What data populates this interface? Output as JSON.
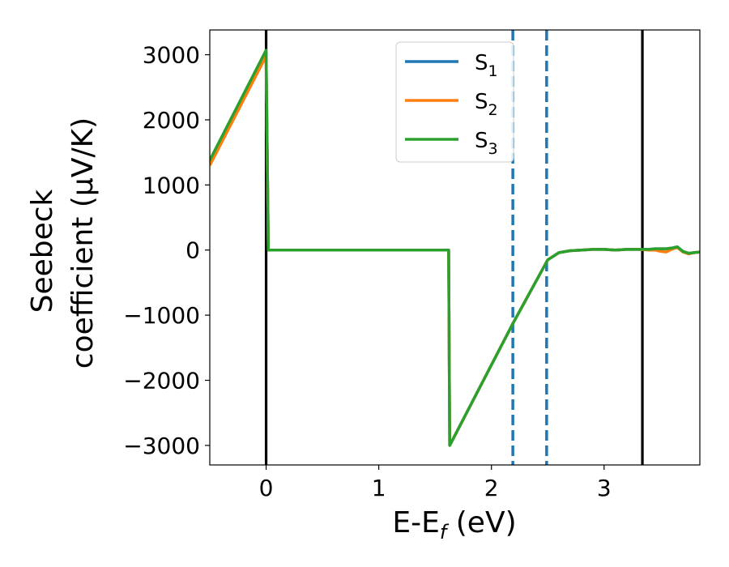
{
  "chart_data": {
    "type": "line",
    "xlabel_main": "E-E",
    "xlabel_sub": "f",
    "xlabel_unit": " (eV)",
    "ylabel_line1": "Seebeck",
    "ylabel_line2": "coefficient  (μV/K)",
    "xlim": [
      -0.5,
      3.85
    ],
    "ylim": [
      -3300,
      3380
    ],
    "xticks": [
      0,
      1,
      2,
      3
    ],
    "xtick_labels": [
      "0",
      "1",
      "2",
      "3"
    ],
    "yticks": [
      3000,
      2000,
      1000,
      0,
      -1000,
      -2000,
      -3000
    ],
    "ytick_labels": [
      "3000",
      "2000",
      "1000",
      "0",
      "−1000",
      "−2000",
      "−3000"
    ],
    "grid": false,
    "legend_position": "upper-center",
    "vertical_lines": [
      {
        "x": 0.0,
        "style": "solid",
        "color": "#000000"
      },
      {
        "x": 2.19,
        "style": "dashed",
        "color": "#1f77b4"
      },
      {
        "x": 2.49,
        "style": "dashed",
        "color": "#1f77b4"
      },
      {
        "x": 3.34,
        "style": "solid",
        "color": "#000000"
      }
    ],
    "series": [
      {
        "name": "S",
        "sub": "1",
        "color": "#1f77b4",
        "x": [
          -0.5,
          0.0,
          0.02,
          1.62,
          1.63,
          2.19,
          2.5,
          2.6,
          2.7,
          2.8,
          2.9,
          3.0,
          3.1,
          3.2,
          3.3,
          3.4,
          3.45,
          3.5,
          3.55,
          3.6,
          3.65,
          3.7,
          3.75,
          3.8,
          3.85
        ],
        "y": [
          1350,
          3040,
          0,
          0,
          -3000,
          -1130,
          -150,
          -40,
          -10,
          0,
          10,
          10,
          0,
          10,
          10,
          10,
          20,
          20,
          20,
          30,
          50,
          -20,
          -50,
          -40,
          -30
        ]
      },
      {
        "name": "S",
        "sub": "2",
        "color": "#ff7f0e",
        "x": [
          -0.5,
          0.0,
          0.02,
          1.62,
          1.63,
          2.19,
          2.5,
          2.6,
          2.7,
          2.8,
          2.9,
          3.0,
          3.1,
          3.2,
          3.3,
          3.4,
          3.45,
          3.5,
          3.55,
          3.6,
          3.65,
          3.7,
          3.75,
          3.8,
          3.85
        ],
        "y": [
          1300,
          2980,
          0,
          0,
          -3000,
          -1130,
          -150,
          -40,
          -10,
          0,
          10,
          10,
          0,
          10,
          10,
          0,
          0,
          -20,
          -30,
          10,
          40,
          -30,
          -60,
          -40,
          -30
        ]
      },
      {
        "name": "S",
        "sub": "3",
        "color": "#2ca02c",
        "x": [
          -0.5,
          0.0,
          0.02,
          1.62,
          1.63,
          2.19,
          2.5,
          2.6,
          2.7,
          2.8,
          2.9,
          3.0,
          3.1,
          3.2,
          3.3,
          3.4,
          3.45,
          3.5,
          3.55,
          3.6,
          3.65,
          3.7,
          3.75,
          3.8,
          3.85
        ],
        "y": [
          1380,
          3070,
          0,
          0,
          -3000,
          -1130,
          -150,
          -40,
          -10,
          0,
          10,
          10,
          0,
          10,
          10,
          10,
          20,
          20,
          20,
          30,
          50,
          -20,
          -50,
          -40,
          -30
        ]
      }
    ]
  }
}
